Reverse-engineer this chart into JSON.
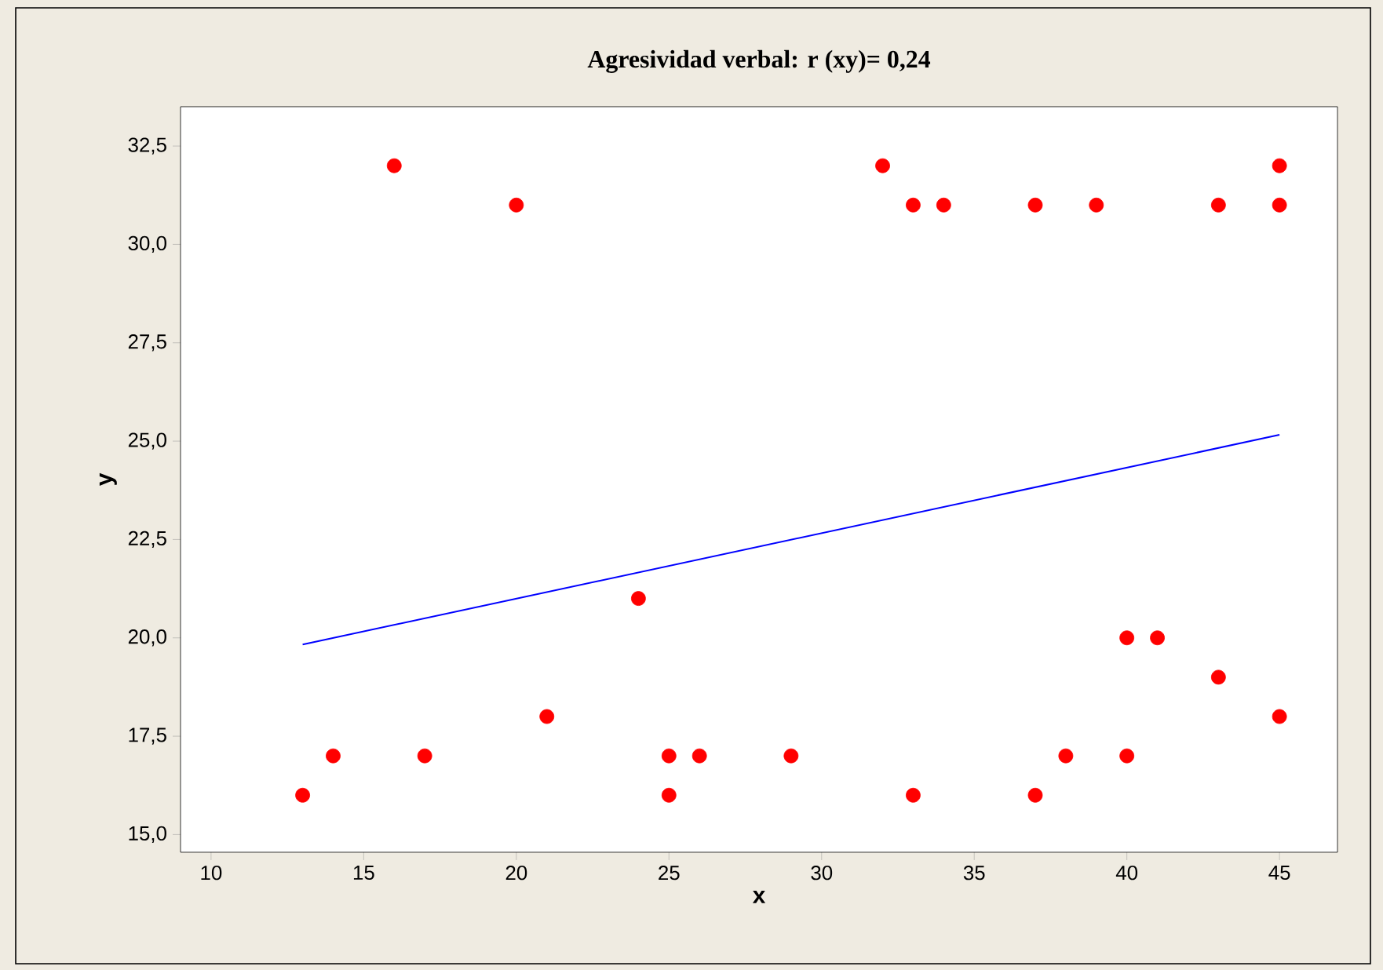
{
  "chart_data": {
    "type": "scatter",
    "title": "Agresividad verbal: r (xy)= 0,24",
    "xlabel": "x",
    "ylabel": "y",
    "xlim": [
      9.0,
      46.9
    ],
    "ylim": [
      14.55,
      33.5
    ],
    "xticks": [
      10,
      15,
      20,
      25,
      30,
      35,
      40,
      45
    ],
    "yticks": [
      {
        "value": 15.0,
        "label": "15,0"
      },
      {
        "value": 17.5,
        "label": "17,5"
      },
      {
        "value": 20.0,
        "label": "20,0"
      },
      {
        "value": 22.5,
        "label": "22,5"
      },
      {
        "value": 25.0,
        "label": "25,0"
      },
      {
        "value": 27.5,
        "label": "27,5"
      },
      {
        "value": 30.0,
        "label": "30,0"
      },
      {
        "value": 32.5,
        "label": "32,5"
      }
    ],
    "grid": false,
    "series": [
      {
        "type": "scatter",
        "marker": "circle",
        "color": "#ff0000",
        "x": [
          13,
          14,
          16,
          17,
          20,
          21,
          24,
          25,
          25,
          26,
          29,
          32,
          33,
          33,
          34,
          37,
          37,
          38,
          39,
          40,
          40,
          41,
          43,
          43,
          45,
          45,
          45
        ],
        "values": [
          16,
          17,
          32,
          17,
          31,
          18,
          21,
          17,
          16,
          17,
          17,
          32,
          31,
          16,
          31,
          31,
          16,
          17,
          31,
          20,
          17,
          20,
          31,
          19,
          32,
          31,
          18
        ]
      },
      {
        "type": "line",
        "color": "#0000ff",
        "marker": "none",
        "x": [
          13,
          45
        ],
        "values": [
          19.83,
          25.16
        ]
      }
    ]
  }
}
